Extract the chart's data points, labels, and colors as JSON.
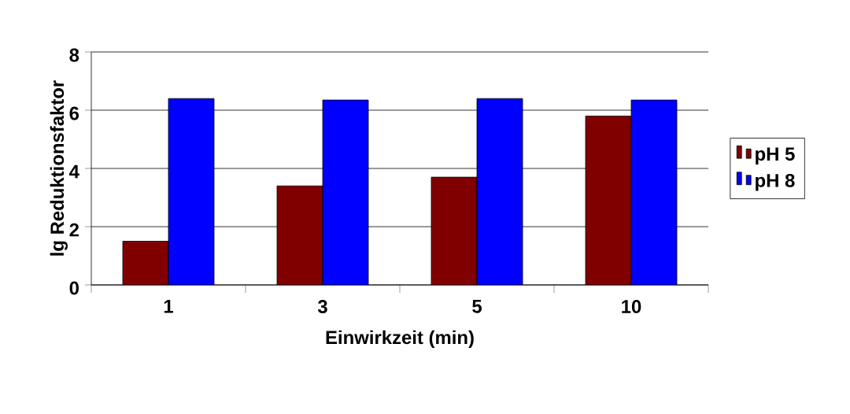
{
  "chart_data": {
    "type": "bar",
    "xlabel": "Einwirkzeit (min)",
    "ylabel": "lg Reduktionsfaktor",
    "categories": [
      "1",
      "3",
      "5",
      "10"
    ],
    "series": [
      {
        "name": "pH 5",
        "color": "#800000",
        "values": [
          1.5,
          3.4,
          3.7,
          5.8
        ]
      },
      {
        "name": "pH 8",
        "color": "#0000ff",
        "values": [
          6.4,
          6.35,
          6.4,
          6.35
        ]
      }
    ],
    "ylim": [
      0,
      8
    ],
    "yticks": [
      0,
      2,
      4,
      6,
      8
    ],
    "grid": "y",
    "legend": "right"
  }
}
